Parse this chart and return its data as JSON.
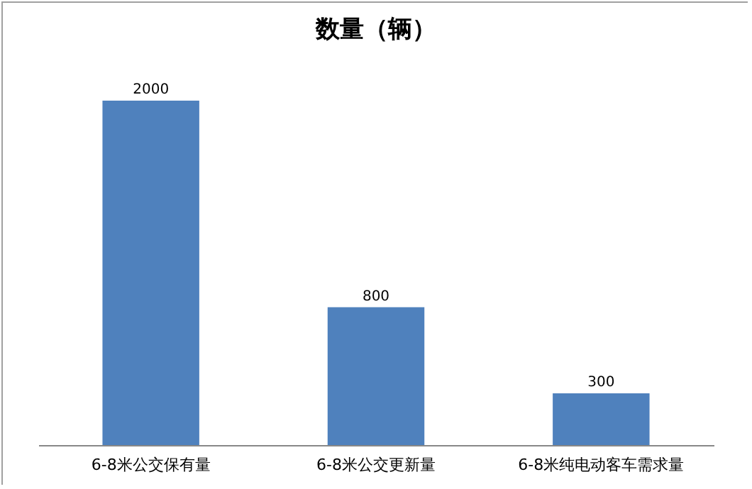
{
  "chart_data": {
    "type": "bar",
    "title": "数量（辆）",
    "categories": [
      "6-8米公交保有量",
      "6-8米公交更新量",
      "6-8米纯电动客车需求量"
    ],
    "values": [
      2000,
      800,
      300
    ],
    "color": "#4f81bd",
    "data_labels": true
  }
}
